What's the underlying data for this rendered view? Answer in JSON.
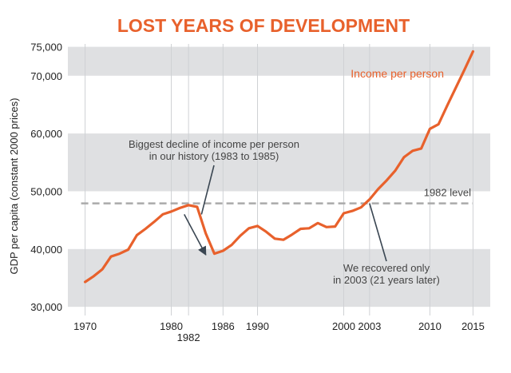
{
  "chart_data": {
    "type": "line",
    "title": "LOST YEARS OF DEVELOPMENT",
    "ylabel": "GDP per capita (constant 2000 prices)",
    "xlabel": "",
    "xlim": [
      1968,
      2017
    ],
    "ylim": [
      28500,
      75500
    ],
    "y_ticks": [
      {
        "value": 30000,
        "label": "30,000"
      },
      {
        "value": 40000,
        "label": "40,000"
      },
      {
        "value": 50000,
        "label": "50,000"
      },
      {
        "value": 60000,
        "label": "60,000"
      },
      {
        "value": 70000,
        "label": "70,000"
      },
      {
        "value": 75000,
        "label": "75,000"
      }
    ],
    "x_ticks": [
      {
        "value": 1970,
        "label": "1970"
      },
      {
        "value": 1980,
        "label": "1980"
      },
      {
        "value": 1982,
        "label": "1982"
      },
      {
        "value": 1986,
        "label": "1986"
      },
      {
        "value": 1990,
        "label": "1990"
      },
      {
        "value": 2000,
        "label": "2000"
      },
      {
        "value": 2003,
        "label": "2003"
      },
      {
        "value": 2010,
        "label": "2010"
      },
      {
        "value": 2015,
        "label": "2015"
      }
    ],
    "bands": [
      [
        30000,
        40000
      ],
      [
        50000,
        60000
      ],
      [
        70000,
        75000
      ]
    ],
    "vertical_gridlines": [
      1970,
      1980,
      1982,
      1986,
      1990,
      2000,
      2003,
      2010,
      2015
    ],
    "series": [
      {
        "name": "Income per person",
        "color": "#e8612c",
        "x": [
          1970,
          1971,
          1972,
          1973,
          1974,
          1975,
          1976,
          1977,
          1978,
          1979,
          1980,
          1981,
          1982,
          1983,
          1984,
          1985,
          1986,
          1987,
          1988,
          1989,
          1990,
          1991,
          1992,
          1993,
          1994,
          1995,
          1996,
          1997,
          1998,
          1999,
          2000,
          2001,
          2002,
          2003,
          2004,
          2005,
          2006,
          2007,
          2008,
          2009,
          2010,
          2011,
          2012,
          2013,
          2014,
          2015
        ],
        "y": [
          34300,
          35300,
          36500,
          38700,
          39200,
          39900,
          42400,
          43500,
          44700,
          46000,
          46500,
          47100,
          47600,
          47300,
          42700,
          39200,
          39700,
          40700,
          42300,
          43600,
          44000,
          43000,
          41800,
          41600,
          42500,
          43500,
          43600,
          44500,
          43800,
          43900,
          46200,
          46600,
          47200,
          48600,
          50400,
          51900,
          53600,
          55900,
          57000,
          57400,
          60800,
          61600,
          64800,
          67900,
          71000,
          74200
        ]
      }
    ],
    "reference_line": {
      "value": 47900,
      "label": "1982 level",
      "color": "#aaaaaa"
    },
    "annotations": [
      {
        "lines": [
          "Biggest decline of income per person",
          "in our history (1983 to 1985)"
        ],
        "arrow_to": [
          1983.5,
          46000
        ]
      },
      {
        "lines": [
          "We recovered only",
          "in 2003 (21 years later)"
        ],
        "arrow_to": [
          2003,
          47900
        ]
      }
    ],
    "decline_arrow": {
      "from": [
        1981.5,
        46000
      ],
      "to": [
        1984,
        39000
      ]
    },
    "legend": "inline-top-right"
  }
}
